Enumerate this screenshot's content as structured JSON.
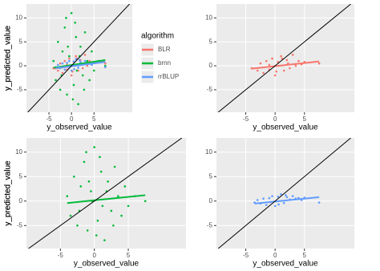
{
  "chart_data": [
    {
      "type": "scatter",
      "x_label": "y_observed_value",
      "y_label": "y_predicted_value",
      "xlim": [
        -10,
        13.5
      ],
      "ylim": [
        -9.7,
        12.9
      ],
      "xticks": [
        -5,
        0,
        5
      ],
      "yticks": [
        -5,
        0,
        5,
        10
      ],
      "grid": true,
      "legend": "right",
      "legend_title": "algorithm",
      "reference_line": {
        "x": [
          -9.7,
          12.9
        ],
        "values": [
          -9.7,
          12.9
        ]
      },
      "series": [
        {
          "name": "BLR",
          "color": "#f8766d",
          "x": [
            -4,
            -3,
            -2.5,
            -2,
            -1.5,
            -1,
            -0.5,
            0,
            0.5,
            1,
            1.5,
            2,
            2.5,
            3,
            3.5,
            4,
            4.5,
            5,
            -1,
            0.2,
            1.2,
            2.2,
            7.5
          ],
          "values": [
            -0.5,
            -1,
            0.5,
            -1.5,
            1,
            -0.8,
            1.5,
            -2,
            0.8,
            2,
            -1,
            1.2,
            -0.5,
            2.3,
            0,
            1,
            0.3,
            0.8,
            0.2,
            -1.2,
            1.5,
            0.5,
            0.5
          ],
          "trend": {
            "x": [
              -4,
              7.5
            ],
            "values": [
              -0.6,
              0.9
            ]
          }
        },
        {
          "name": "brnn",
          "color": "#00ba38",
          "x": [
            -4,
            -3.5,
            -3,
            -2.5,
            -2,
            -1.5,
            -1,
            -0.5,
            0,
            0.5,
            1,
            1.5,
            2,
            2.5,
            3,
            3.5,
            4,
            4.5,
            5,
            -1.2,
            0.3,
            1.8,
            -2.2,
            0.8,
            -0.3,
            2.8,
            -0.8,
            1.2,
            6,
            7.5
          ],
          "values": [
            1,
            -3,
            5,
            -5,
            3,
            8,
            -6,
            2,
            11,
            -4,
            6,
            -8,
            4,
            -2,
            7,
            1,
            -3,
            3,
            -1,
            10,
            -7,
            2,
            -2,
            9,
            0,
            -5,
            4,
            -1,
            1,
            0
          ],
          "trend": {
            "x": [
              -4,
              7.5
            ],
            "values": [
              -0.4,
              1.2
            ]
          }
        },
        {
          "name": "rrBLUP",
          "color": "#619cff",
          "x": [
            -3.5,
            -3,
            -2.5,
            -2,
            -1.5,
            -1,
            -0.5,
            0,
            0.5,
            1,
            1.5,
            2,
            2.5,
            3,
            3.5,
            4,
            4.5,
            5,
            -0.8,
            0.6,
            1.8,
            7.5
          ],
          "values": [
            -0.3,
            0.2,
            -0.5,
            0.5,
            -0.8,
            0.6,
            1,
            -1,
            0.9,
            1.4,
            -0.4,
            0.8,
            0.3,
            1,
            0.5,
            0.6,
            0.2,
            0.7,
            -0.2,
            -0.7,
            1.2,
            -0.3
          ],
          "trend": {
            "x": [
              -3.5,
              7.5
            ],
            "values": [
              -0.5,
              0.8
            ]
          }
        }
      ]
    },
    {
      "type": "scatter",
      "x_label": "y_observed_value",
      "y_label": "y_predicted_value",
      "xlim": [
        -10,
        13.5
      ],
      "ylim": [
        -9.7,
        12.9
      ],
      "xticks": [
        -5,
        0,
        5
      ],
      "yticks": [
        -5,
        0,
        5,
        10
      ],
      "grid": true,
      "reference_line": {
        "x": [
          -9.7,
          12.9
        ],
        "values": [
          -9.7,
          12.9
        ]
      },
      "series": [
        {
          "color": "#f8766d",
          "x": [
            -4,
            -3,
            -2.5,
            -2,
            -1.5,
            -1,
            -0.5,
            0,
            0.5,
            1,
            1.5,
            2,
            2.5,
            3,
            3.5,
            4,
            4.5,
            5,
            -1,
            0.2,
            1.2,
            2.2,
            7.5
          ],
          "values": [
            -0.5,
            -1,
            0.5,
            -1.5,
            1,
            -0.8,
            1.5,
            -2,
            0.8,
            2,
            -1,
            1.2,
            -0.5,
            2.3,
            0,
            1,
            0.3,
            0.8,
            0.2,
            -1.2,
            1.5,
            0.5,
            0.5
          ],
          "trend": {
            "x": [
              -4,
              7.5
            ],
            "values": [
              -0.6,
              0.9
            ]
          }
        }
      ]
    },
    {
      "type": "scatter",
      "x_label": "y_observed_value",
      "y_label": "y_predicted_value",
      "xlim": [
        -10,
        13.5
      ],
      "ylim": [
        -9.7,
        12.9
      ],
      "xticks": [
        -5,
        0,
        5
      ],
      "yticks": [
        -5,
        0,
        5,
        10
      ],
      "grid": true,
      "reference_line": {
        "x": [
          -9.7,
          12.9
        ],
        "values": [
          -9.7,
          12.9
        ]
      },
      "series": [
        {
          "color": "#00ba38",
          "x": [
            -4,
            -3.5,
            -3,
            -2.5,
            -2,
            -1.5,
            -1,
            -0.5,
            0,
            0.5,
            1,
            1.5,
            2,
            2.5,
            3,
            3.5,
            4,
            4.5,
            5,
            -1.2,
            0.3,
            1.8,
            -2.2,
            0.8,
            -0.3,
            2.8,
            -0.8,
            1.2,
            6,
            7.5
          ],
          "values": [
            1,
            -3,
            5,
            -5,
            3,
            8,
            -6,
            2,
            11,
            -4,
            6,
            -8,
            4,
            -2,
            7,
            1,
            -3,
            3,
            -1,
            10,
            -7,
            2,
            -2,
            9,
            0,
            -5,
            4,
            -1,
            1,
            0
          ],
          "trend": {
            "x": [
              -4,
              7.5
            ],
            "values": [
              -0.4,
              1.2
            ]
          }
        }
      ]
    },
    {
      "type": "scatter",
      "x_label": "y_observed_value",
      "y_label": "y_predicted_value",
      "xlim": [
        -10,
        13.5
      ],
      "ylim": [
        -9.7,
        12.9
      ],
      "xticks": [
        -5,
        0,
        5
      ],
      "yticks": [
        -5,
        0,
        5,
        10
      ],
      "grid": true,
      "reference_line": {
        "x": [
          -9.7,
          12.9
        ],
        "values": [
          -9.7,
          12.9
        ]
      },
      "series": [
        {
          "color": "#619cff",
          "x": [
            -3.5,
            -3,
            -2.5,
            -2,
            -1.5,
            -1,
            -0.5,
            0,
            0.5,
            1,
            1.5,
            2,
            2.5,
            3,
            3.5,
            4,
            4.5,
            5,
            -0.8,
            0.6,
            1.8,
            7.5
          ],
          "values": [
            -0.3,
            0.2,
            -0.5,
            0.5,
            -0.8,
            0.6,
            1,
            -1,
            0.9,
            1.4,
            -0.4,
            0.8,
            0.3,
            1,
            0.5,
            0.6,
            0.2,
            0.7,
            -0.2,
            -0.7,
            1.2,
            -0.3
          ],
          "trend": {
            "x": [
              -3.5,
              7.5
            ],
            "values": [
              -0.5,
              0.8
            ]
          }
        }
      ]
    }
  ]
}
